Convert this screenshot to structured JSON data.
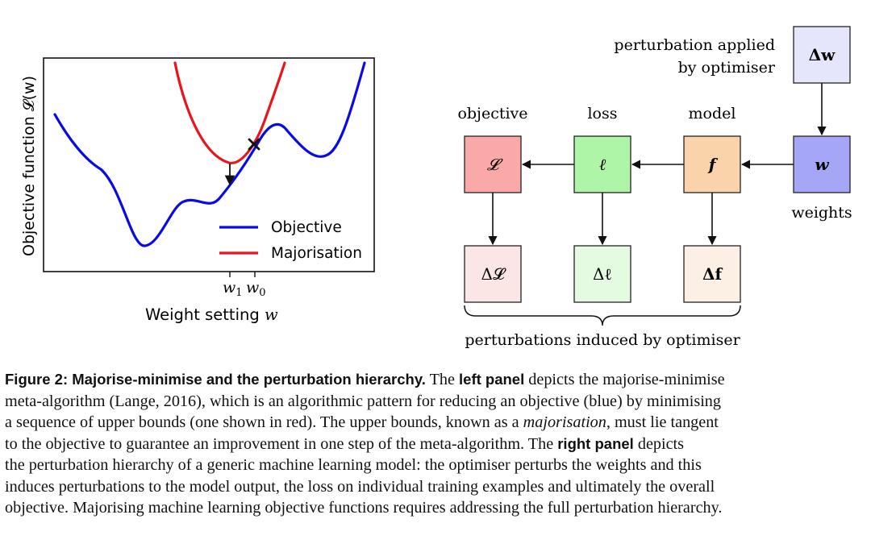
{
  "left_panel": {
    "ylabel": "Objective function 𝓛(w)",
    "xlabel_text": "Weight setting ",
    "xlabel_var": "w",
    "tick_w1": "w",
    "tick_w1_sub": "1",
    "tick_w0": "w",
    "tick_w0_sub": "0",
    "legend": [
      {
        "label": "Objective",
        "color": "#0a0ae6"
      },
      {
        "label": "Majorisation",
        "color": "#e8151b"
      }
    ],
    "colors": {
      "objective": "#0a0ae6",
      "majorisation": "#e8151b"
    }
  },
  "right_panel": {
    "perturbation_applied_line1": "perturbation applied",
    "perturbation_applied_line2": "by optimiser",
    "labels": {
      "objective": "objective",
      "loss": "loss",
      "model": "model",
      "weights": "weights"
    },
    "nodes": {
      "delta_w": "Δw",
      "w": "w",
      "f": "f",
      "ell": "ℓ",
      "L": "𝓛",
      "delta_L": "Δ𝓛",
      "delta_ell": "Δℓ",
      "delta_f": "Δf"
    },
    "brace_label": "perturbations induced by optimiser"
  },
  "caption": {
    "figure_label": "Figure 2: Majorise-minimise and the perturbation hierarchy.",
    "t1": " The ",
    "left_panel": "left panel",
    "t2": " depicts the majorise-minimise",
    "line2": "meta-algorithm (Lange, 2016), which is an algorithmic pattern for reducing an objective (blue) by minimising",
    "line3a": "a sequence of upper bounds (one shown in red). The upper bounds, known as a ",
    "majorisation": "majorisation",
    "line3b": ", must lie tangent",
    "line4a": "to the objective to guarantee an improvement in one step of the meta-algorithm. The ",
    "right_panel": "right panel",
    "line4b": " depicts",
    "line5": "the perturbation hierarchy of a generic machine learning model: the optimiser perturbs the weights and this",
    "line6": "induces perturbations to the model output, the loss on individual training examples and ultimately the overall",
    "line7": "objective. Majorising machine learning objective functions requires addressing the full perturbation hierarchy."
  }
}
